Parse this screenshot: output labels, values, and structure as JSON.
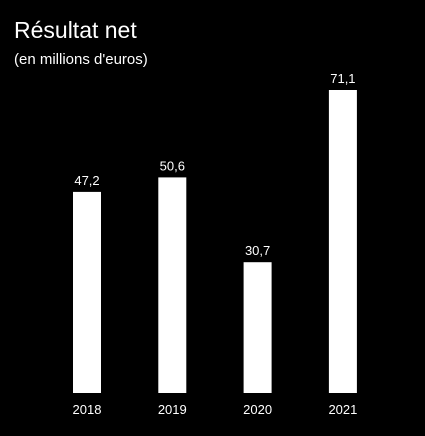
{
  "chart_data": {
    "type": "bar",
    "title": "Résultat net",
    "subtitle": "(en millions d'euros)",
    "categories": [
      "2018",
      "2019",
      "2020",
      "2021"
    ],
    "values": [
      47.2,
      50.6,
      30.7,
      71.1
    ],
    "value_labels": [
      "47,2",
      "50,6",
      "30,7",
      "71,1"
    ],
    "xlabel": "",
    "ylabel": "",
    "ylim": [
      0,
      71.1
    ],
    "grid": false,
    "legend": "none",
    "colors": {
      "background": "#000000",
      "bar": "#ffffff",
      "text": "#ffffff"
    }
  }
}
